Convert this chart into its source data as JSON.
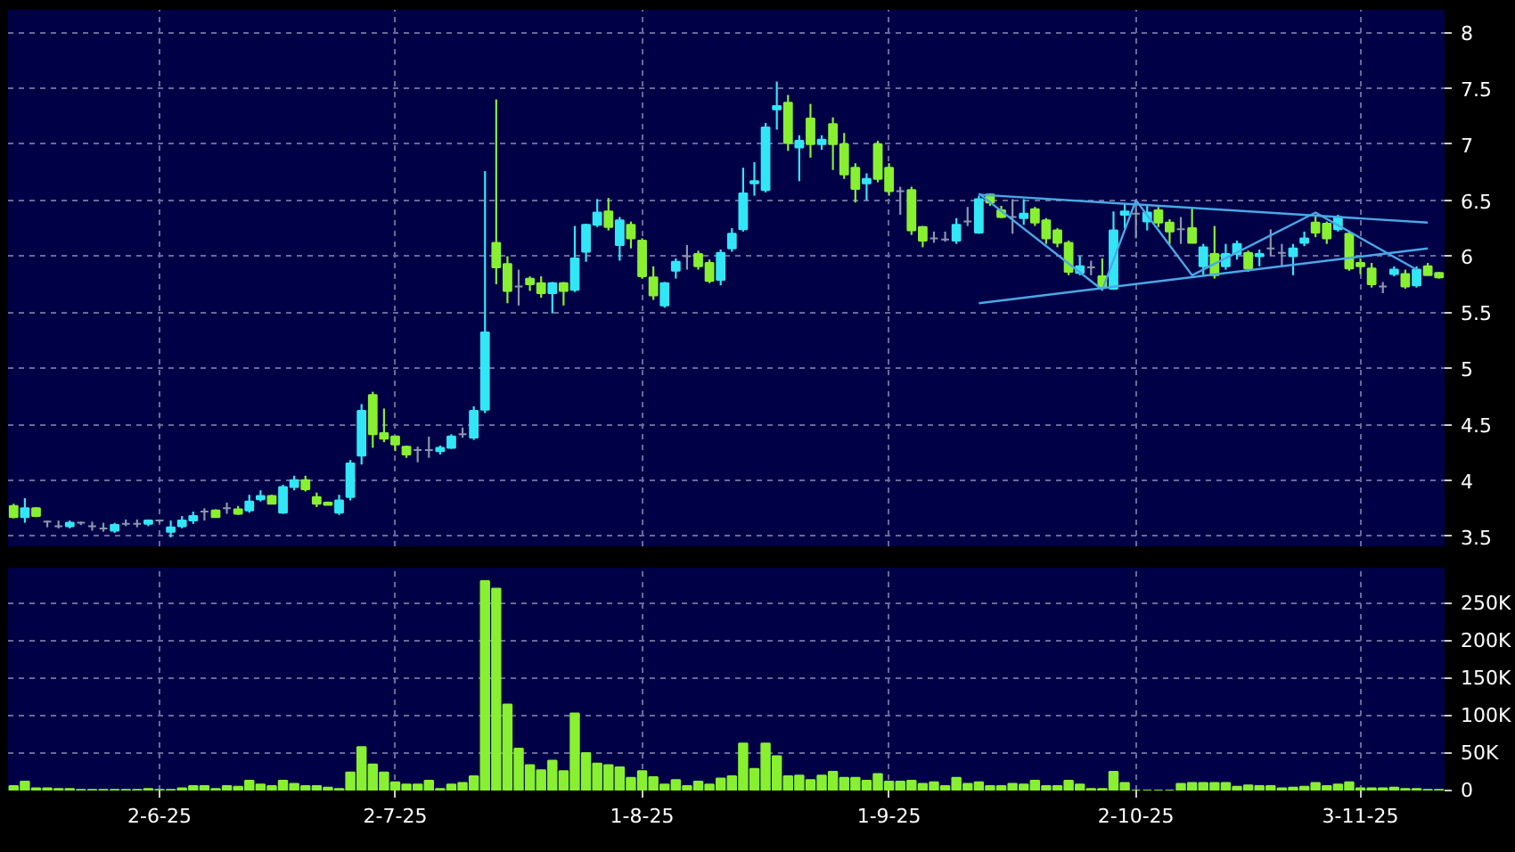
{
  "chart_data": [
    {
      "type": "candlestick",
      "categories": [
        null,
        null,
        null,
        null,
        null,
        null,
        null,
        null,
        null,
        null,
        null,
        null,
        null,
        null,
        null,
        null,
        null,
        null,
        null,
        null,
        null,
        null,
        null,
        null,
        null,
        null,
        null,
        null,
        null,
        null,
        null,
        null,
        null,
        null,
        null,
        null,
        null,
        null,
        null,
        null,
        null,
        null,
        null,
        null,
        null,
        null,
        null,
        null,
        null,
        null,
        null,
        null,
        null,
        null,
        null,
        null,
        null,
        null,
        null,
        null,
        null,
        null,
        null,
        null,
        null,
        null,
        null,
        null,
        null,
        null,
        null,
        null,
        null,
        null,
        null,
        null,
        null,
        null,
        null,
        null,
        null,
        null,
        null,
        null,
        null,
        null,
        null,
        null,
        null,
        null,
        null,
        null,
        null,
        null,
        null,
        null,
        null,
        null,
        null,
        null,
        null,
        null,
        null,
        null,
        null,
        null,
        null,
        null,
        null,
        null,
        null,
        null,
        null,
        null,
        null,
        null,
        null,
        null,
        null,
        null,
        null,
        null,
        null,
        null,
        null,
        null,
        null,
        null
      ],
      "ohlc": [
        [
          3.77,
          3.79,
          3.66,
          3.67
        ],
        [
          3.67,
          3.84,
          3.62,
          3.75
        ],
        [
          3.75,
          3.76,
          3.67,
          3.68
        ],
        [
          3.63,
          3.64,
          3.58,
          3.63
        ],
        [
          3.59,
          3.64,
          3.57,
          3.59
        ],
        [
          3.59,
          3.64,
          3.57,
          3.62
        ],
        [
          3.62,
          3.63,
          3.6,
          3.62
        ],
        [
          3.59,
          3.63,
          3.55,
          3.59
        ],
        [
          3.57,
          3.62,
          3.54,
          3.57
        ],
        [
          3.55,
          3.62,
          3.53,
          3.6
        ],
        [
          3.61,
          3.65,
          3.59,
          3.61
        ],
        [
          3.61,
          3.65,
          3.58,
          3.61
        ],
        [
          3.61,
          3.65,
          3.59,
          3.64
        ],
        [
          3.64,
          3.65,
          3.62,
          3.64
        ],
        [
          3.54,
          3.64,
          3.49,
          3.58
        ],
        [
          3.59,
          3.68,
          3.57,
          3.64
        ],
        [
          3.64,
          3.72,
          3.61,
          3.68
        ],
        [
          3.72,
          3.75,
          3.64,
          3.72
        ],
        [
          3.73,
          3.74,
          3.67,
          3.67
        ],
        [
          3.75,
          3.8,
          3.7,
          3.75
        ],
        [
          3.74,
          3.77,
          3.69,
          3.7
        ],
        [
          3.73,
          3.87,
          3.71,
          3.81
        ],
        [
          3.83,
          3.91,
          3.81,
          3.86
        ],
        [
          3.86,
          3.87,
          3.79,
          3.79
        ],
        [
          3.71,
          3.96,
          3.7,
          3.94
        ],
        [
          3.94,
          4.04,
          3.91,
          4.0
        ],
        [
          4.0,
          4.04,
          3.9,
          3.92
        ],
        [
          3.85,
          3.89,
          3.76,
          3.79
        ],
        [
          3.8,
          3.81,
          3.78,
          3.78
        ],
        [
          3.71,
          3.87,
          3.69,
          3.82
        ],
        [
          3.85,
          4.18,
          3.82,
          4.15
        ],
        [
          4.22,
          4.68,
          4.14,
          4.62
        ],
        [
          4.76,
          4.79,
          4.29,
          4.41
        ],
        [
          4.42,
          4.64,
          4.34,
          4.37
        ],
        [
          4.39,
          4.39,
          4.26,
          4.32
        ],
        [
          4.3,
          4.31,
          4.2,
          4.23
        ],
        [
          4.27,
          4.3,
          4.16,
          4.27
        ],
        [
          4.27,
          4.39,
          4.2,
          4.27
        ],
        [
          4.26,
          4.31,
          4.23,
          4.29
        ],
        [
          4.29,
          4.41,
          4.28,
          4.39
        ],
        [
          4.41,
          4.47,
          4.38,
          4.41
        ],
        [
          4.38,
          4.66,
          4.36,
          4.62
        ],
        [
          4.63,
          6.76,
          4.6,
          5.32
        ],
        [
          6.12,
          7.4,
          5.75,
          5.9
        ],
        [
          5.93,
          6.0,
          5.58,
          5.69
        ],
        [
          5.73,
          5.88,
          5.56,
          5.73
        ],
        [
          5.8,
          5.82,
          5.69,
          5.75
        ],
        [
          5.76,
          5.82,
          5.63,
          5.67
        ],
        [
          5.67,
          5.77,
          5.49,
          5.76
        ],
        [
          5.76,
          5.77,
          5.56,
          5.69
        ],
        [
          5.7,
          6.27,
          5.68,
          5.98
        ],
        [
          6.04,
          6.29,
          5.95,
          6.28
        ],
        [
          6.28,
          6.51,
          6.26,
          6.39
        ],
        [
          6.4,
          6.52,
          6.23,
          6.26
        ],
        [
          6.1,
          6.35,
          5.96,
          6.32
        ],
        [
          6.28,
          6.31,
          6.07,
          6.16
        ],
        [
          6.14,
          6.16,
          5.8,
          5.82
        ],
        [
          5.81,
          5.91,
          5.61,
          5.65
        ],
        [
          5.56,
          5.77,
          5.54,
          5.76
        ],
        [
          5.87,
          5.98,
          5.8,
          5.95
        ],
        [
          6.0,
          6.1,
          5.88,
          6.0
        ],
        [
          6.02,
          6.05,
          5.88,
          5.91
        ],
        [
          5.94,
          5.97,
          5.76,
          5.78
        ],
        [
          5.79,
          6.06,
          5.74,
          6.03
        ],
        [
          6.07,
          6.25,
          6.04,
          6.2
        ],
        [
          6.24,
          6.79,
          6.22,
          6.56
        ],
        [
          6.65,
          6.84,
          6.54,
          6.67
        ],
        [
          6.59,
          7.19,
          6.57,
          7.15
        ],
        [
          7.31,
          7.56,
          7.13,
          7.34
        ],
        [
          7.37,
          7.44,
          6.94,
          7.01
        ],
        [
          6.97,
          7.08,
          6.67,
          7.03
        ],
        [
          7.23,
          7.36,
          6.88,
          7.0
        ],
        [
          7.0,
          7.08,
          6.95,
          7.04
        ],
        [
          7.18,
          7.24,
          6.77,
          7.0
        ],
        [
          7.0,
          7.1,
          6.69,
          6.73
        ],
        [
          6.79,
          6.83,
          6.48,
          6.6
        ],
        [
          6.65,
          6.74,
          6.5,
          6.69
        ],
        [
          7.0,
          7.03,
          6.66,
          6.69
        ],
        [
          6.79,
          6.83,
          6.54,
          6.58
        ],
        [
          6.58,
          6.62,
          6.37,
          6.58
        ],
        [
          6.59,
          6.62,
          6.19,
          6.23
        ],
        [
          6.26,
          6.27,
          6.08,
          6.14
        ],
        [
          6.16,
          6.22,
          6.12,
          6.16
        ],
        [
          6.15,
          6.22,
          6.13,
          6.15
        ],
        [
          6.14,
          6.34,
          6.11,
          6.28
        ],
        [
          6.31,
          6.44,
          6.27,
          6.31
        ],
        [
          6.21,
          6.54,
          6.2,
          6.51
        ],
        [
          6.55,
          6.56,
          6.45,
          6.48
        ],
        [
          6.41,
          6.45,
          6.34,
          6.35
        ],
        [
          6.35,
          6.51,
          6.2,
          6.35
        ],
        [
          6.34,
          6.51,
          6.28,
          6.38
        ],
        [
          6.42,
          6.44,
          6.27,
          6.3
        ],
        [
          6.32,
          6.34,
          6.11,
          6.16
        ],
        [
          6.23,
          6.25,
          6.08,
          6.12
        ],
        [
          6.12,
          6.14,
          5.83,
          5.86
        ],
        [
          5.85,
          6.0,
          5.83,
          5.91
        ],
        [
          5.9,
          5.96,
          5.83,
          5.9
        ],
        [
          5.82,
          5.98,
          5.7,
          5.73
        ],
        [
          5.71,
          6.4,
          5.7,
          6.23
        ],
        [
          6.37,
          6.47,
          6.25,
          6.4
        ],
        [
          6.38,
          6.46,
          6.16,
          6.38
        ],
        [
          6.31,
          6.45,
          6.23,
          6.39
        ],
        [
          6.41,
          6.44,
          6.26,
          6.3
        ],
        [
          6.3,
          6.33,
          6.11,
          6.22
        ],
        [
          6.24,
          6.35,
          6.11,
          6.24
        ],
        [
          6.25,
          6.43,
          6.12,
          6.12
        ],
        [
          5.91,
          6.11,
          5.83,
          6.08
        ],
        [
          6.02,
          6.27,
          5.8,
          5.83
        ],
        [
          5.91,
          6.11,
          5.88,
          6.02
        ],
        [
          6.02,
          6.14,
          5.97,
          6.11
        ],
        [
          6.03,
          6.05,
          5.86,
          5.89
        ],
        [
          6.0,
          6.06,
          5.91,
          6.02
        ],
        [
          6.07,
          6.24,
          6.0,
          6.07
        ],
        [
          6.03,
          6.11,
          5.91,
          6.03
        ],
        [
          6.0,
          6.11,
          5.83,
          6.07
        ],
        [
          6.12,
          6.22,
          6.09,
          6.16
        ],
        [
          6.3,
          6.37,
          6.17,
          6.21
        ],
        [
          6.29,
          6.31,
          6.11,
          6.16
        ],
        [
          6.24,
          6.37,
          6.22,
          6.35
        ],
        [
          6.2,
          6.23,
          5.87,
          5.89
        ],
        [
          5.94,
          5.98,
          5.84,
          5.91
        ],
        [
          5.89,
          5.94,
          5.72,
          5.75
        ],
        [
          5.73,
          5.77,
          5.67,
          5.73
        ],
        [
          5.84,
          5.91,
          5.82,
          5.88
        ],
        [
          5.84,
          5.88,
          5.71,
          5.73
        ],
        [
          5.74,
          5.91,
          5.72,
          5.88
        ],
        [
          5.91,
          5.94,
          5.83,
          5.83
        ],
        [
          5.85,
          5.86,
          5.8,
          5.81
        ]
      ],
      "colors": [
        "#88f030",
        "#33e6f5",
        "#88f030",
        "#8a96aa",
        "#8a96aa",
        "#33e6f5",
        "#8a96aa",
        "#8a96aa",
        "#8a96aa",
        "#33e6f5",
        "#8a96aa",
        "#8a96aa",
        "#33e6f5",
        "#8a96aa",
        "#33e6f5",
        "#33e6f5",
        "#33e6f5",
        "#8a96aa",
        "#88f030",
        "#8a96aa",
        "#88f030",
        "#33e6f5",
        "#33e6f5",
        "#88f030",
        "#33e6f5",
        "#33e6f5",
        "#88f030",
        "#88f030",
        "#88f030",
        "#33e6f5",
        "#33e6f5",
        "#33e6f5",
        "#88f030",
        "#88f030",
        "#88f030",
        "#88f030",
        "#8a96aa",
        "#8a96aa",
        "#33e6f5",
        "#33e6f5",
        "#8a96aa",
        "#33e6f5",
        "#33e6f5",
        "#88f030",
        "#88f030",
        "#8a96aa",
        "#88f030",
        "#88f030",
        "#33e6f5",
        "#88f030",
        "#33e6f5",
        "#33e6f5",
        "#33e6f5",
        "#88f030",
        "#33e6f5",
        "#88f030",
        "#88f030",
        "#88f030",
        "#33e6f5",
        "#33e6f5",
        "#8a96aa",
        "#88f030",
        "#88f030",
        "#33e6f5",
        "#33e6f5",
        "#33e6f5",
        "#33e6f5",
        "#33e6f5",
        "#33e6f5",
        "#88f030",
        "#33e6f5",
        "#88f030",
        "#33e6f5",
        "#88f030",
        "#88f030",
        "#88f030",
        "#33e6f5",
        "#88f030",
        "#88f030",
        "#8a96aa",
        "#88f030",
        "#88f030",
        "#8a96aa",
        "#8a96aa",
        "#33e6f5",
        "#8a96aa",
        "#33e6f5",
        "#88f030",
        "#88f030",
        "#8a96aa",
        "#33e6f5",
        "#88f030",
        "#88f030",
        "#88f030",
        "#88f030",
        "#33e6f5",
        "#8a96aa",
        "#88f030",
        "#33e6f5",
        "#33e6f5",
        "#8a96aa",
        "#33e6f5",
        "#88f030",
        "#88f030",
        "#8a96aa",
        "#88f030",
        "#33e6f5",
        "#88f030",
        "#33e6f5",
        "#33e6f5",
        "#88f030",
        "#33e6f5",
        "#8a96aa",
        "#8a96aa",
        "#33e6f5",
        "#33e6f5",
        "#88f030",
        "#88f030",
        "#33e6f5",
        "#88f030",
        "#88f030",
        "#88f030",
        "#8a96aa",
        "#33e6f5",
        "#88f030",
        "#33e6f5",
        "#88f030",
        "#88f030"
      ],
      "ylim": [
        3.41,
        8.2
      ],
      "yticks": [
        3.5,
        4,
        4.5,
        5,
        5.5,
        6,
        6.5,
        7,
        7.5,
        8
      ],
      "grid": true,
      "tick_labels": "y",
      "series": [
        {
          "type": "line",
          "color": "#4aa8e8",
          "values": [
            null,
            null,
            null,
            null,
            null,
            null,
            null,
            null,
            null,
            null,
            null,
            null,
            null,
            null,
            null,
            null,
            null,
            null,
            null,
            null,
            null,
            null,
            null,
            null,
            null,
            null,
            null,
            null,
            null,
            null,
            null,
            null,
            null,
            null,
            null,
            null,
            null,
            null,
            null,
            null,
            null,
            null,
            null,
            null,
            null,
            null,
            null,
            null,
            null,
            null,
            null,
            null,
            null,
            null,
            null,
            null,
            null,
            null,
            null,
            null,
            null,
            null,
            null,
            null,
            null,
            null,
            null,
            null,
            null,
            null,
            null,
            null,
            null,
            null,
            null,
            null,
            null,
            null,
            null,
            null,
            null,
            null,
            null,
            null,
            null,
            null,
            6.55,
            null,
            null,
            null,
            null,
            null,
            null,
            null,
            null,
            null,
            null,
            null,
            null,
            null,
            null,
            null,
            null,
            null,
            null,
            null,
            null,
            null,
            null,
            null,
            null,
            null,
            null,
            null,
            null,
            null,
            null,
            null,
            null,
            null,
            null,
            null,
            null,
            null,
            null,
            null,
            6.3,
            null
          ]
        },
        {
          "type": "line",
          "color": "#4aa8e8",
          "values": [
            null,
            null,
            null,
            null,
            null,
            null,
            null,
            null,
            null,
            null,
            null,
            null,
            null,
            null,
            null,
            null,
            null,
            null,
            null,
            null,
            null,
            null,
            null,
            null,
            null,
            null,
            null,
            null,
            null,
            null,
            null,
            null,
            null,
            null,
            null,
            null,
            null,
            null,
            null,
            null,
            null,
            null,
            null,
            null,
            null,
            null,
            null,
            null,
            null,
            null,
            null,
            null,
            null,
            null,
            null,
            null,
            null,
            null,
            null,
            null,
            null,
            null,
            null,
            null,
            null,
            null,
            null,
            null,
            null,
            null,
            null,
            null,
            null,
            null,
            null,
            null,
            null,
            null,
            null,
            null,
            null,
            null,
            null,
            null,
            null,
            null,
            5.58,
            null,
            null,
            null,
            null,
            null,
            null,
            null,
            null,
            null,
            null,
            null,
            null,
            null,
            null,
            null,
            null,
            null,
            null,
            null,
            null,
            null,
            null,
            null,
            null,
            null,
            null,
            null,
            null,
            null,
            null,
            null,
            null,
            null,
            null,
            null,
            null,
            null,
            null,
            null,
            6.07,
            null
          ]
        },
        {
          "type": "line",
          "color": "#4aa8e8",
          "values": [
            null,
            null,
            null,
            null,
            null,
            null,
            null,
            null,
            null,
            null,
            null,
            null,
            null,
            null,
            null,
            null,
            null,
            null,
            null,
            null,
            null,
            null,
            null,
            null,
            null,
            null,
            null,
            null,
            null,
            null,
            null,
            null,
            null,
            null,
            null,
            null,
            null,
            null,
            null,
            null,
            null,
            null,
            null,
            null,
            null,
            null,
            null,
            null,
            null,
            null,
            null,
            null,
            null,
            null,
            null,
            null,
            null,
            null,
            null,
            null,
            null,
            null,
            null,
            null,
            null,
            null,
            null,
            null,
            null,
            null,
            null,
            null,
            null,
            null,
            null,
            null,
            null,
            null,
            null,
            null,
            null,
            null,
            null,
            null,
            null,
            null,
            6.56,
            null,
            null,
            null,
            null,
            null,
            null,
            null,
            null,
            null,
            null,
            5.7,
            null,
            null,
            6.5,
            null,
            null,
            null,
            null,
            5.83,
            null,
            null,
            null,
            null,
            null,
            null,
            null,
            null,
            null,
            null,
            6.39,
            null,
            null,
            null,
            null,
            null,
            null,
            null,
            null,
            5.88,
            null,
            null
          ]
        }
      ]
    },
    {
      "type": "bar",
      "categories": [
        null,
        null,
        null,
        null,
        null,
        null,
        null,
        null,
        null,
        null,
        null,
        null,
        null,
        "2-6-25",
        null,
        null,
        null,
        null,
        null,
        null,
        null,
        null,
        null,
        null,
        null,
        null,
        null,
        null,
        null,
        null,
        null,
        null,
        null,
        null,
        "2-7-25",
        null,
        null,
        null,
        null,
        null,
        null,
        null,
        null,
        null,
        null,
        null,
        null,
        null,
        null,
        null,
        null,
        null,
        null,
        null,
        null,
        null,
        "1-8-25",
        null,
        null,
        null,
        null,
        null,
        null,
        null,
        null,
        null,
        null,
        null,
        null,
        null,
        null,
        null,
        null,
        null,
        null,
        null,
        null,
        null,
        "1-9-25",
        null,
        null,
        null,
        null,
        null,
        null,
        null,
        null,
        null,
        null,
        null,
        null,
        null,
        null,
        null,
        null,
        null,
        null,
        null,
        null,
        null,
        "2-10-25",
        null,
        null,
        null,
        null,
        null,
        null,
        null,
        null,
        null,
        null,
        null,
        null,
        null,
        null,
        null,
        null,
        null,
        null,
        null,
        "3-11-25",
        null,
        null,
        null,
        null,
        null,
        null,
        null
      ],
      "values": [
        6000,
        12000,
        3000,
        3000,
        2000,
        2000,
        1000,
        1000,
        1000,
        1000,
        1000,
        1000,
        2000,
        1000,
        1000,
        3000,
        6000,
        6000,
        2000,
        6000,
        5000,
        13000,
        8000,
        6000,
        13000,
        9000,
        6000,
        6000,
        4000,
        2000,
        24000,
        58000,
        35000,
        24000,
        11000,
        8000,
        8000,
        13000,
        2000,
        8000,
        10000,
        19000,
        280000,
        270000,
        115000,
        56000,
        34000,
        27000,
        40000,
        26000,
        103000,
        50000,
        36000,
        34000,
        31000,
        17000,
        26000,
        18000,
        8000,
        14000,
        6000,
        12000,
        8000,
        16000,
        19000,
        63000,
        29000,
        63000,
        46000,
        19000,
        20000,
        14000,
        20000,
        25000,
        17000,
        17000,
        13000,
        22000,
        12000,
        12000,
        13000,
        9000,
        11000,
        6000,
        17000,
        9000,
        11000,
        6000,
        6000,
        9000,
        8000,
        13000,
        6000,
        6000,
        13000,
        8000,
        2000,
        2000,
        25000,
        10000,
        0,
        0,
        0,
        0,
        9000,
        10000,
        10000,
        10000,
        10000,
        5000,
        7000,
        6000,
        6000,
        3000,
        4000,
        5000,
        10000,
        6000,
        8000,
        11000,
        3000,
        3000,
        3000,
        4000,
        2000,
        2000,
        1000,
        1000
      ],
      "color": "#88f030",
      "ylim": [
        0,
        298000
      ],
      "yticks": [
        {
          "value": 0,
          "label": "0"
        },
        {
          "value": 50000,
          "label": "50K"
        },
        {
          "value": 100000,
          "label": "100K"
        },
        {
          "value": 150000,
          "label": "150K"
        },
        {
          "value": 200000,
          "label": "200K"
        },
        {
          "value": 250000,
          "label": "250K"
        }
      ],
      "grid": true
    }
  ]
}
